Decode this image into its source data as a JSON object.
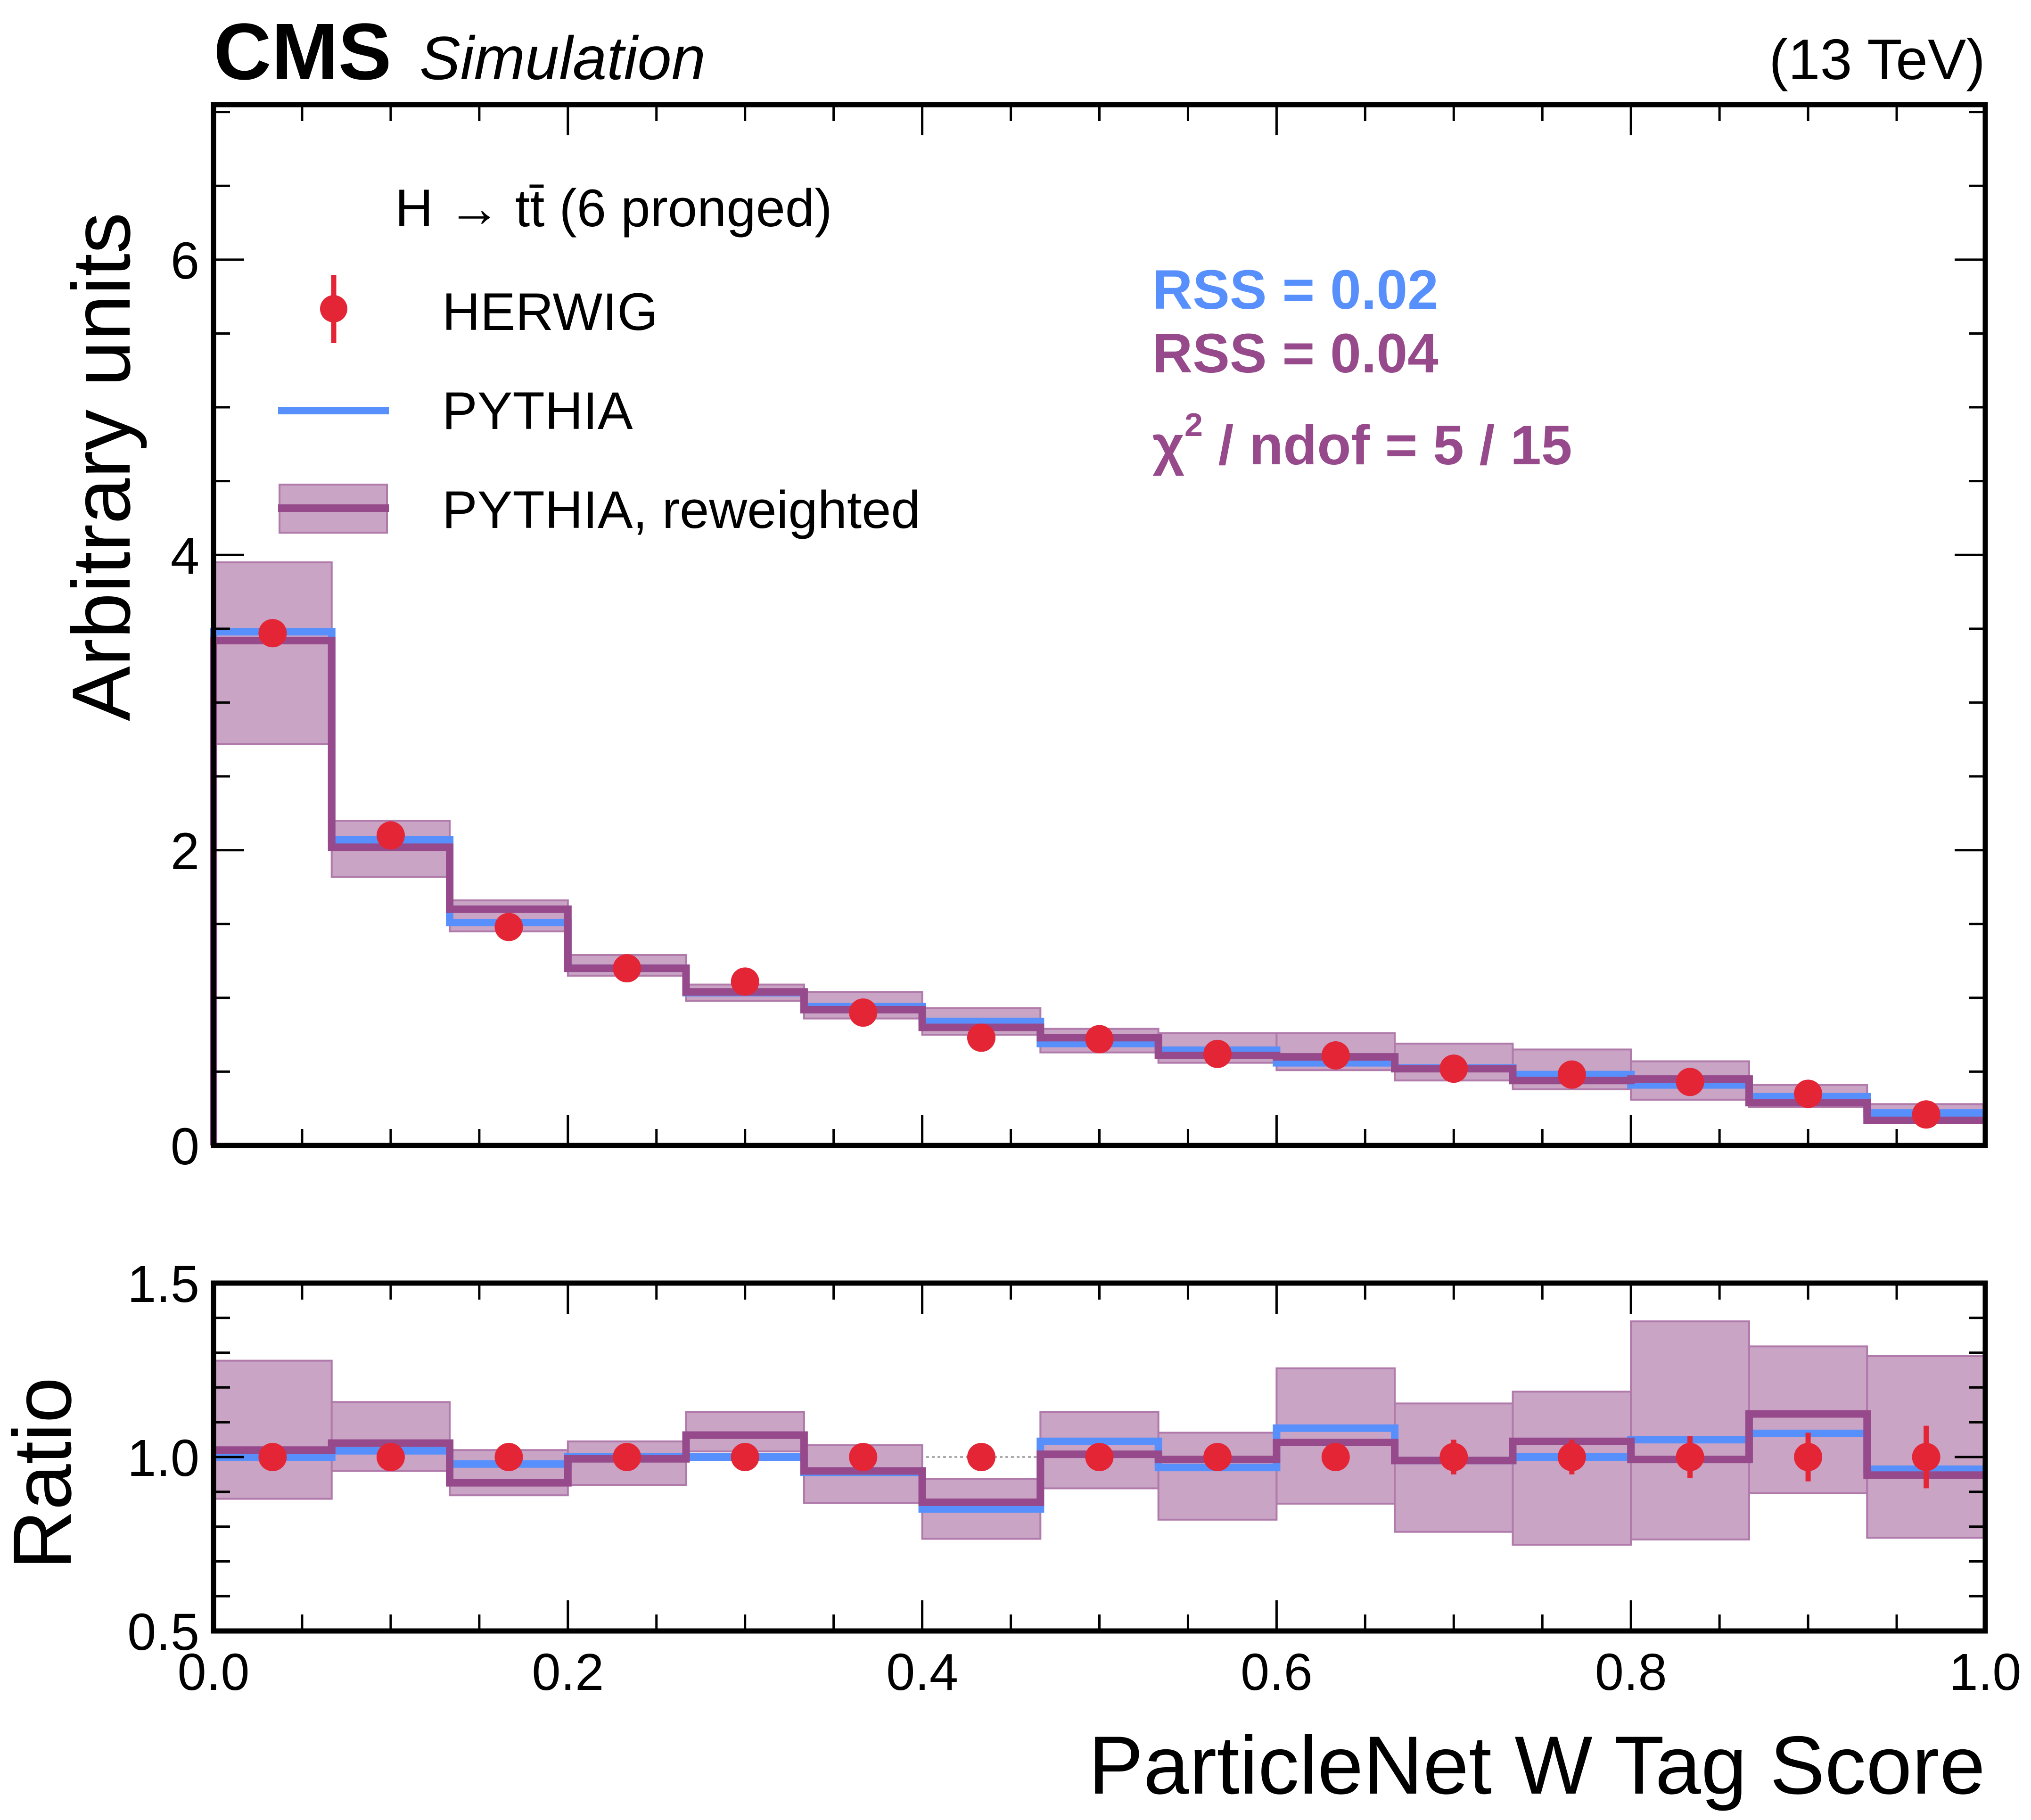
{
  "header": {
    "experiment": "CMS",
    "qualifier": "Simulation",
    "energy": "(13 TeV)"
  },
  "legend": {
    "title": "H → tt̄ (6 pronged)",
    "entries": [
      {
        "label": "HERWIG",
        "icon": "errorbar-marker-icon"
      },
      {
        "label": "PYTHIA",
        "icon": "line-icon"
      },
      {
        "label": "PYTHIA, reweighted",
        "icon": "band-line-icon"
      }
    ]
  },
  "annotations": {
    "rss_pythia": "RSS = 0.02",
    "rss_reweighted": "RSS = 0.04",
    "chi2_prefix": "χ",
    "chi2_sup": "2",
    "chi2_rest": " / ndof = 5 / 15"
  },
  "colors": {
    "herwig": "#e42536",
    "pythia": "#5790fc",
    "reweighted": "#964a8b",
    "band": "#c9a4c5"
  },
  "chart_data": [
    {
      "type": "line",
      "panel": "main",
      "title": "",
      "xlabel": "",
      "ylabel": "Arbitrary units",
      "xlim": [
        0.0,
        1.0
      ],
      "ylim": [
        0,
        7.05
      ],
      "yticks": [
        0,
        2,
        4,
        6
      ],
      "ytick_labels": [
        "0",
        "2",
        "4",
        "6"
      ],
      "bin_edges": [
        0.0,
        0.0667,
        0.1333,
        0.2,
        0.2667,
        0.3333,
        0.4,
        0.4667,
        0.5333,
        0.6,
        0.6667,
        0.7333,
        0.8,
        0.8667,
        0.9333,
        1.0
      ],
      "series": [
        {
          "name": "HERWIG",
          "kind": "points",
          "values": [
            3.47,
            2.1,
            1.48,
            1.2,
            1.11,
            0.9,
            0.73,
            0.72,
            0.62,
            0.61,
            0.52,
            0.48,
            0.43,
            0.35,
            0.21
          ]
        },
        {
          "name": "PYTHIA",
          "kind": "step",
          "values": [
            3.48,
            2.07,
            1.51,
            1.2,
            1.035,
            0.94,
            0.84,
            0.69,
            0.645,
            0.56,
            0.525,
            0.48,
            0.41,
            0.33,
            0.22
          ]
        },
        {
          "name": "PYTHIA, reweighted",
          "kind": "step",
          "values": [
            3.42,
            2.02,
            1.6,
            1.2,
            1.04,
            0.92,
            0.8,
            0.73,
            0.61,
            0.6,
            0.52,
            0.44,
            0.45,
            0.29,
            0.17
          ]
        },
        {
          "name": "PYTHIA, reweighted uncertainty",
          "kind": "band",
          "upper": [
            3.95,
            2.2,
            1.66,
            1.29,
            1.09,
            1.04,
            0.93,
            0.79,
            0.76,
            0.76,
            0.69,
            0.65,
            0.57,
            0.41,
            0.28
          ],
          "lower": [
            2.72,
            1.82,
            1.45,
            1.15,
            0.98,
            0.86,
            0.75,
            0.63,
            0.56,
            0.51,
            0.44,
            0.38,
            0.31,
            0.26,
            0.15
          ]
        }
      ]
    },
    {
      "type": "line",
      "panel": "ratio",
      "xlabel": "ParticleNet W Tag Score",
      "ylabel": "Ratio",
      "xlim": [
        0.0,
        1.0
      ],
      "ylim": [
        0.5,
        1.5
      ],
      "xticks": [
        0.0,
        0.2,
        0.4,
        0.6,
        0.8,
        1.0
      ],
      "xtick_labels": [
        "0.0",
        "0.2",
        "0.4",
        "0.6",
        "0.8",
        "1.0"
      ],
      "yticks": [
        0.5,
        1.0,
        1.5
      ],
      "ytick_labels": [
        "0.5",
        "1.0",
        "1.5"
      ],
      "reference_line": 1.0,
      "bin_edges": [
        0.0,
        0.0667,
        0.1333,
        0.2,
        0.2667,
        0.3333,
        0.4,
        0.4667,
        0.5333,
        0.6,
        0.6667,
        0.7333,
        0.8,
        0.8667,
        0.9333,
        1.0
      ],
      "series": [
        {
          "name": "HERWIG",
          "kind": "points",
          "values": [
            1,
            1,
            1,
            1,
            1,
            1,
            1,
            1,
            1,
            1,
            1,
            1,
            1,
            1,
            1
          ],
          "errors": [
            0.01,
            0.01,
            0.01,
            0.01,
            0.01,
            0.02,
            0.04,
            0.03,
            0.04,
            0.04,
            0.05,
            0.05,
            0.06,
            0.07,
            0.09
          ]
        },
        {
          "name": "PYTHIA",
          "kind": "step",
          "values": [
            1.0,
            1.018,
            0.98,
            1.0,
            1.0,
            0.956,
            0.851,
            1.045,
            0.97,
            1.083,
            0.99,
            1.0,
            1.05,
            1.068,
            0.965
          ]
        },
        {
          "name": "PYTHIA, reweighted",
          "kind": "step",
          "values": [
            1.02,
            1.04,
            0.926,
            0.995,
            1.063,
            0.96,
            0.87,
            1.008,
            0.993,
            1.042,
            0.99,
            1.045,
            0.993,
            1.124,
            0.948
          ]
        },
        {
          "name": "PYTHIA, reweighted uncertainty",
          "kind": "band",
          "upper": [
            1.277,
            1.158,
            1.02,
            1.045,
            1.13,
            1.034,
            0.937,
            1.13,
            1.07,
            1.255,
            1.154,
            1.188,
            1.39,
            1.318,
            1.29
          ],
          "lower": [
            0.88,
            0.96,
            0.89,
            0.92,
            1.016,
            0.868,
            0.765,
            0.91,
            0.82,
            0.866,
            0.785,
            0.748,
            0.763,
            0.896,
            0.768
          ]
        }
      ]
    }
  ]
}
